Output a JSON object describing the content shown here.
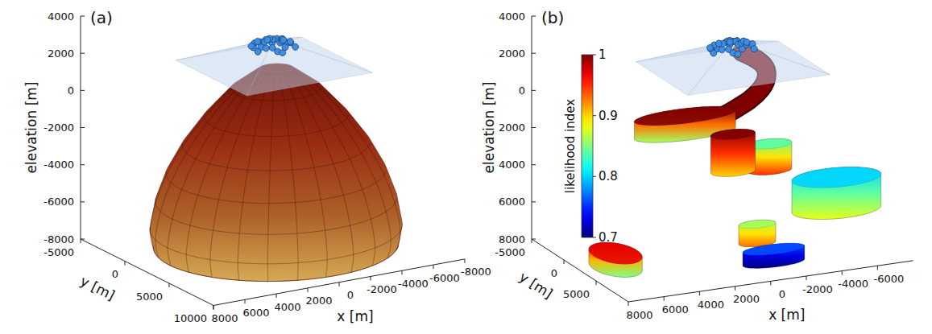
{
  "chart_data": [
    {
      "type": "isosurface",
      "title": "(a)",
      "xlabel": "x [m]",
      "ylabel": "y [m]",
      "zlabel": "elevation [m]",
      "xlim": [
        -8000,
        8000
      ],
      "ylim": [
        -5000,
        10000
      ],
      "zlim": [
        -8000,
        4000
      ],
      "xticks": [
        8000,
        6000,
        4000,
        2000,
        0,
        -2000,
        -4000,
        -6000,
        -8000
      ],
      "yticks": [
        -5000,
        0,
        5000,
        10000
      ],
      "zticks": [
        -8000,
        -6000,
        -4000,
        -2000,
        0,
        2000,
        4000
      ],
      "topography": {
        "x": [
          -5500,
          2500
        ],
        "y": [
          -4000,
          4000
        ],
        "edge_elevation": 1000,
        "peak_elevation": 2500
      },
      "points": [
        [
          -1500,
          0,
          2450
        ],
        [
          -1200,
          300,
          2380
        ],
        [
          -1800,
          -200,
          2400
        ],
        [
          -900,
          -500,
          2300
        ],
        [
          -2100,
          400,
          2280
        ],
        [
          -1400,
          -800,
          2250
        ],
        [
          -1000,
          700,
          2250
        ],
        [
          -2300,
          -600,
          2200
        ],
        [
          -600,
          100,
          2200
        ],
        [
          -1700,
          900,
          2220
        ],
        [
          -2500,
          100,
          2150
        ],
        [
          -1300,
          -300,
          2420
        ],
        [
          -800,
          -1000,
          2120
        ],
        [
          -2000,
          -1000,
          2150
        ],
        [
          -1100,
          1100,
          2130
        ],
        [
          -400,
          -400,
          2100
        ],
        [
          -2700,
          -300,
          2080
        ],
        [
          -1600,
          500,
          2380
        ],
        [
          -1900,
          200,
          2350
        ],
        [
          -700,
          500,
          2230
        ],
        [
          -2200,
          -300,
          2300
        ],
        [
          -1000,
          -200,
          2350
        ],
        [
          -1500,
          -500,
          2380
        ],
        [
          -1300,
          1300,
          2080
        ],
        [
          -300,
          300,
          2050
        ],
        [
          -2400,
          800,
          2100
        ],
        [
          -1800,
          -1300,
          2080
        ],
        [
          -500,
          -800,
          2060
        ],
        [
          -1150,
          -1250,
          2100
        ],
        [
          -2600,
          -900,
          2050
        ]
      ],
      "dome": {
        "center": [
          -500,
          2000
        ],
        "elevations": [
          1500,
          500,
          -1000,
          -2500,
          -4000,
          -5500,
          -7000,
          -8000
        ],
        "radii": [
          1000,
          2500,
          4000,
          5200,
          6100,
          6700,
          7000,
          6800
        ]
      }
    },
    {
      "type": "isosurface",
      "title": "(b)",
      "xlabel": "x [m]",
      "ylabel": "y [m]",
      "zlabel": "elevation [m]",
      "xlim": [
        -8000,
        8000
      ],
      "ylim": [
        -5000,
        10000
      ],
      "zlim": [
        -8000,
        4000
      ],
      "xticks": [
        8000,
        6000,
        4000,
        2000,
        0,
        -2000,
        -4000,
        -6000
      ],
      "yticks": [
        -5000,
        0,
        5000
      ],
      "zticks": [
        4000,
        2000,
        0,
        {
          "value": -2000,
          "label": "2000"
        },
        {
          "value": -4000,
          "label": "4000"
        },
        {
          "value": -6000,
          "label": "6000"
        },
        {
          "value": -8000,
          "label": "8000"
        }
      ],
      "topography": {
        "x": [
          -5500,
          2500
        ],
        "y": [
          -4000,
          4000
        ],
        "edge_elevation": 1000,
        "peak_elevation": 2500
      },
      "points": [
        [
          -1500,
          0,
          2450
        ],
        [
          -1200,
          300,
          2380
        ],
        [
          -1800,
          -200,
          2400
        ],
        [
          -900,
          -500,
          2300
        ],
        [
          -2100,
          400,
          2280
        ],
        [
          -1400,
          -800,
          2250
        ],
        [
          -1000,
          700,
          2250
        ],
        [
          -2300,
          -600,
          2200
        ],
        [
          -600,
          100,
          2200
        ],
        [
          -1700,
          900,
          2220
        ],
        [
          -2500,
          100,
          2150
        ],
        [
          -1300,
          -300,
          2420
        ],
        [
          -800,
          -1000,
          2120
        ],
        [
          -2000,
          -1000,
          2150
        ],
        [
          -1100,
          1100,
          2130
        ],
        [
          -400,
          -400,
          2100
        ],
        [
          -2700,
          -300,
          2080
        ],
        [
          -1600,
          500,
          2380
        ],
        [
          -1900,
          200,
          2350
        ],
        [
          -700,
          500,
          2230
        ],
        [
          -2200,
          -300,
          2300
        ],
        [
          -1000,
          -200,
          2350
        ],
        [
          -1500,
          -500,
          2380
        ],
        [
          -1300,
          1300,
          2080
        ],
        [
          -300,
          300,
          2050
        ],
        [
          -2400,
          800,
          2100
        ],
        [
          -1800,
          -1300,
          2080
        ],
        [
          -500,
          -800,
          2060
        ],
        [
          -1150,
          -1250,
          2100
        ],
        [
          -2600,
          -900,
          2050
        ]
      ],
      "colorbar": {
        "label": "likelihood index",
        "range": [
          0.7,
          1
        ],
        "ticks": [
          0.7,
          0.8,
          0.9,
          1
        ]
      },
      "conduit": {
        "points": [
          [
            -2000,
            0,
            1800
          ],
          [
            -3300,
            0,
            800
          ],
          [
            -3100,
            0,
            -300
          ],
          [
            -1300,
            0,
            -1350
          ],
          [
            300,
            0,
            -1750
          ]
        ],
        "likelihood": 1
      },
      "bodies": [
        {
          "center": [
            1200,
            0,
            -1650
          ],
          "radii": [
            2800,
            1500,
            460
          ],
          "likelihood": [
            1,
            0.86
          ]
        },
        {
          "center": [
            -3550,
            0,
            -4050
          ],
          "radii": [
            1200,
            1000,
            700
          ],
          "likelihood": [
            0.84,
            0.95
          ]
        },
        {
          "center": [
            -1500,
            0,
            -3550
          ],
          "radii": [
            1200,
            1000,
            1000
          ],
          "likelihood": [
            1,
            0.9
          ]
        },
        {
          "center": [
            -5500,
            5000,
            -5150
          ],
          "radii": [
            2400,
            2000,
            850
          ],
          "likelihood": [
            0.8,
            0.88
          ]
        },
        {
          "center": [
            -1050,
            5000,
            -6700
          ],
          "radii": [
            1000,
            800,
            500
          ],
          "likelihood": [
            0.86,
            0.93
          ]
        },
        {
          "center": [
            -1250,
            7000,
            -7480
          ],
          "radii": [
            1700,
            1000,
            350
          ],
          "likelihood": [
            0.76,
            0.7
          ]
        },
        {
          "center": [
            6800,
            4700,
            -7100
          ],
          "radii": [
            1200,
            2500,
            350
          ],
          "likelihood": [
            0.97,
            0.85
          ]
        }
      ]
    }
  ]
}
